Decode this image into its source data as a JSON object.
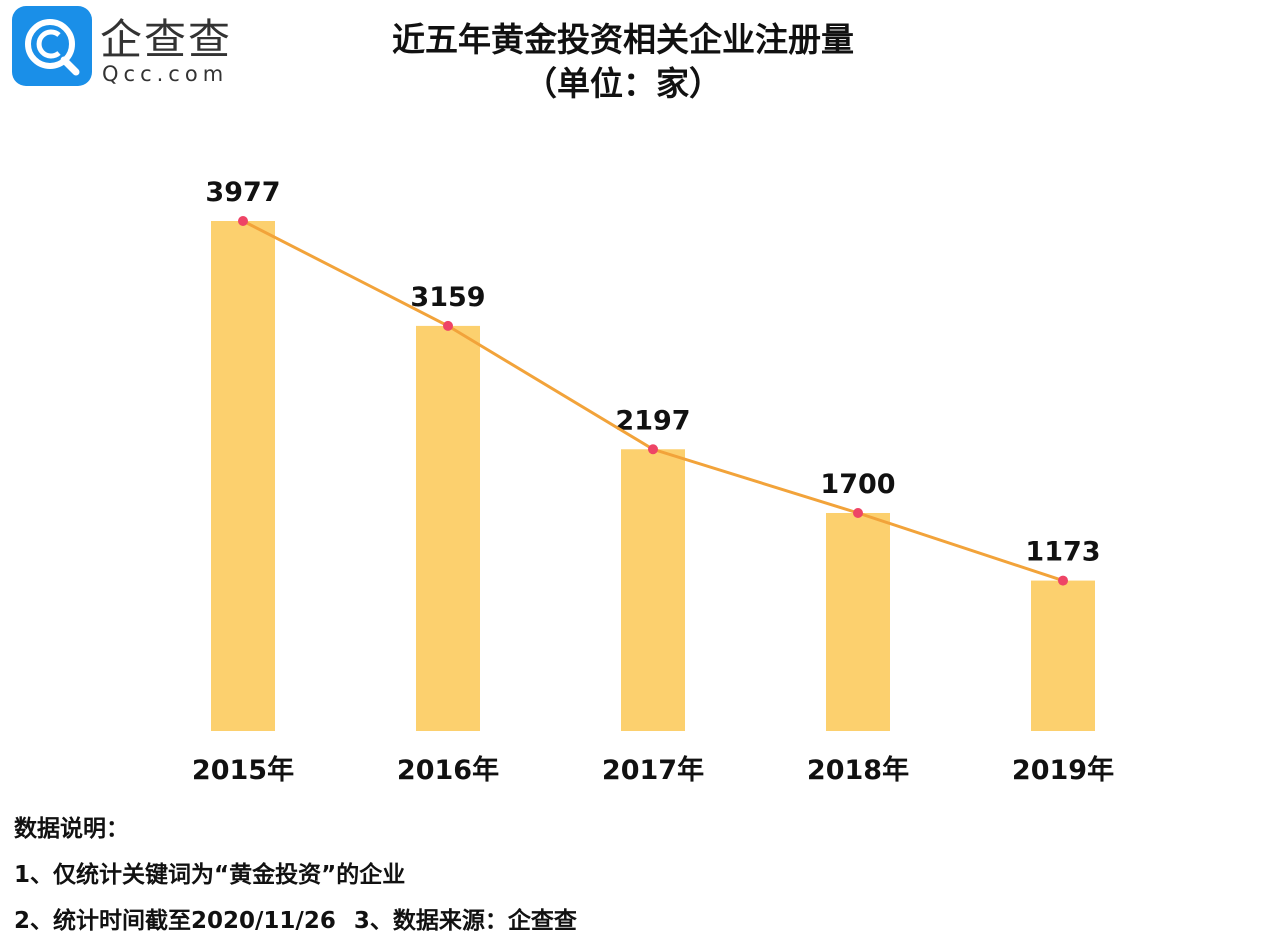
{
  "logo": {
    "cn": "企查查",
    "en": "Qcc.com"
  },
  "title_line1": "近五年黄金投资相关企业注册量",
  "title_line2": "（单位：家）",
  "chart_data": {
    "type": "bar",
    "title": "近五年黄金投资相关企业注册量",
    "unit": "（单位：家）",
    "categories": [
      "2015年",
      "2016年",
      "2017年",
      "2018年",
      "2019年"
    ],
    "values": [
      3977,
      3159,
      2197,
      1700,
      1173
    ],
    "overlay_line": true,
    "grid": false,
    "ylim": [
      0,
      4000
    ],
    "colors": {
      "bar": "#fcd06e",
      "line": "#f2a33a",
      "marker": "#ee4466"
    }
  },
  "notes": {
    "heading": "数据说明：",
    "line1": "1、仅统计关键词为“黄金投资”的企业",
    "line2a": "2、统计时间截至2020/11/26",
    "line2b": "3、数据来源：企查查"
  }
}
